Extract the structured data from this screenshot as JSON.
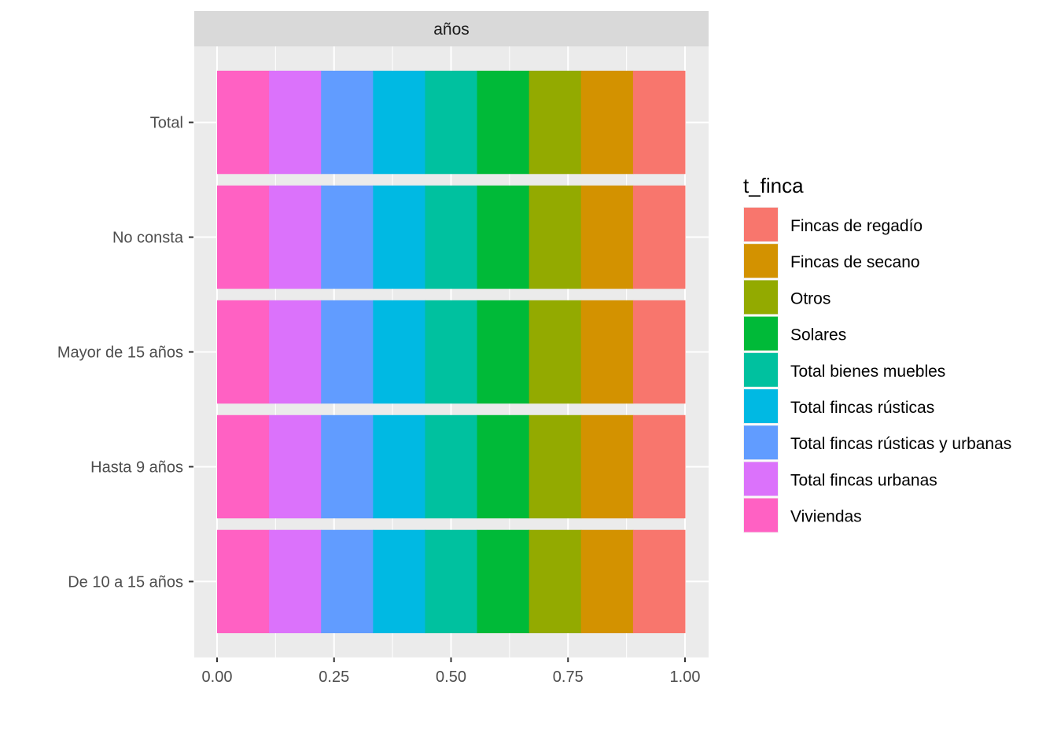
{
  "chart_data": {
    "type": "bar",
    "orientation": "horizontal",
    "stacked": "fill",
    "facet_label": "años",
    "categories": [
      "Total",
      "No consta",
      "Mayor de 15 años",
      "Hasta 9 años",
      "De 10 a 15 años"
    ],
    "xlim": [
      0,
      1
    ],
    "x_ticks": [
      "0.00",
      "0.25",
      "0.50",
      "0.75",
      "1.00"
    ],
    "grid": true,
    "legend": {
      "title": "t_finca",
      "position": "right"
    },
    "series": [
      {
        "name": "Viviendas",
        "color": "#FF61C3",
        "values": [
          0.1111,
          0.1111,
          0.1111,
          0.1111,
          0.1111
        ]
      },
      {
        "name": "Total fincas urbanas",
        "color": "#DB72FB",
        "values": [
          0.1111,
          0.1111,
          0.1111,
          0.1111,
          0.1111
        ]
      },
      {
        "name": "Total fincas rústicas y urbanas",
        "color": "#619CFF",
        "values": [
          0.1111,
          0.1111,
          0.1111,
          0.1111,
          0.1111
        ]
      },
      {
        "name": "Total fincas rústicas",
        "color": "#00B9E3",
        "values": [
          0.1111,
          0.1111,
          0.1111,
          0.1111,
          0.1111
        ]
      },
      {
        "name": "Total bienes muebles",
        "color": "#00C19F",
        "values": [
          0.1111,
          0.1111,
          0.1111,
          0.1111,
          0.1111
        ]
      },
      {
        "name": "Solares",
        "color": "#00BA38",
        "values": [
          0.1111,
          0.1111,
          0.1111,
          0.1111,
          0.1111
        ]
      },
      {
        "name": "Otros",
        "color": "#93AA00",
        "values": [
          0.1111,
          0.1111,
          0.1111,
          0.1111,
          0.1111
        ]
      },
      {
        "name": "Fincas de secano",
        "color": "#D39200",
        "values": [
          0.1111,
          0.1111,
          0.1111,
          0.1111,
          0.1111
        ]
      },
      {
        "name": "Fincas de regadío",
        "color": "#F8766D",
        "values": [
          0.1111,
          0.1111,
          0.1111,
          0.1111,
          0.1111
        ]
      }
    ],
    "legend_order": [
      "Fincas de regadío",
      "Fincas de secano",
      "Otros",
      "Solares",
      "Total bienes muebles",
      "Total fincas rústicas",
      "Total fincas rústicas y urbanas",
      "Total fincas urbanas",
      "Viviendas"
    ]
  }
}
